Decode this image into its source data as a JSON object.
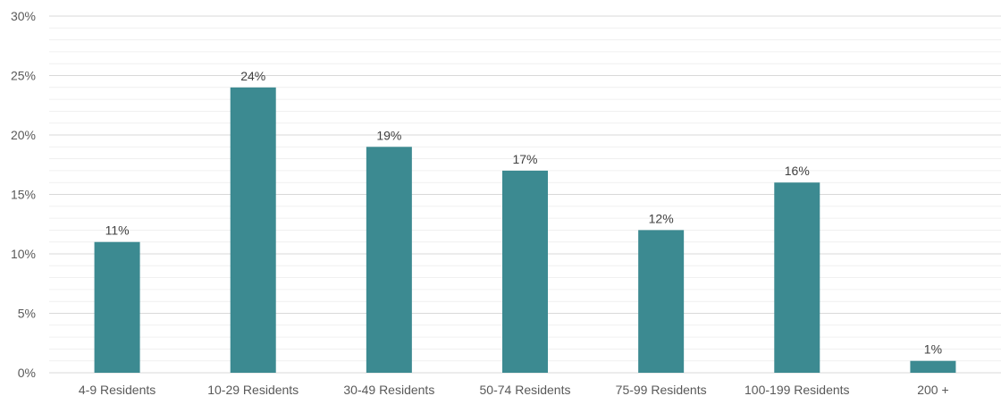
{
  "chart_data": {
    "type": "bar",
    "title": "",
    "xlabel": "",
    "ylabel": "",
    "categories": [
      "4-9 Residents",
      "10-29 Residents",
      "30-49 Residents",
      "50-74 Residents",
      "75-99 Residents",
      "100-199 Residents",
      "200 +"
    ],
    "values": [
      11,
      24,
      19,
      17,
      12,
      16,
      1
    ],
    "data_labels": [
      "11%",
      "24%",
      "19%",
      "17%",
      "12%",
      "16%",
      "1%"
    ],
    "ylim": [
      0,
      30
    ],
    "yticks": [
      0,
      5,
      10,
      15,
      20,
      25,
      30
    ],
    "ytick_labels": [
      "0%",
      "5%",
      "10%",
      "15%",
      "20%",
      "25%",
      "30%"
    ],
    "grid": true,
    "legend": "none",
    "colors": {
      "bar": "#3c8a91",
      "major_grid": "#d9d9d9",
      "minor_grid": "#ececec"
    }
  }
}
